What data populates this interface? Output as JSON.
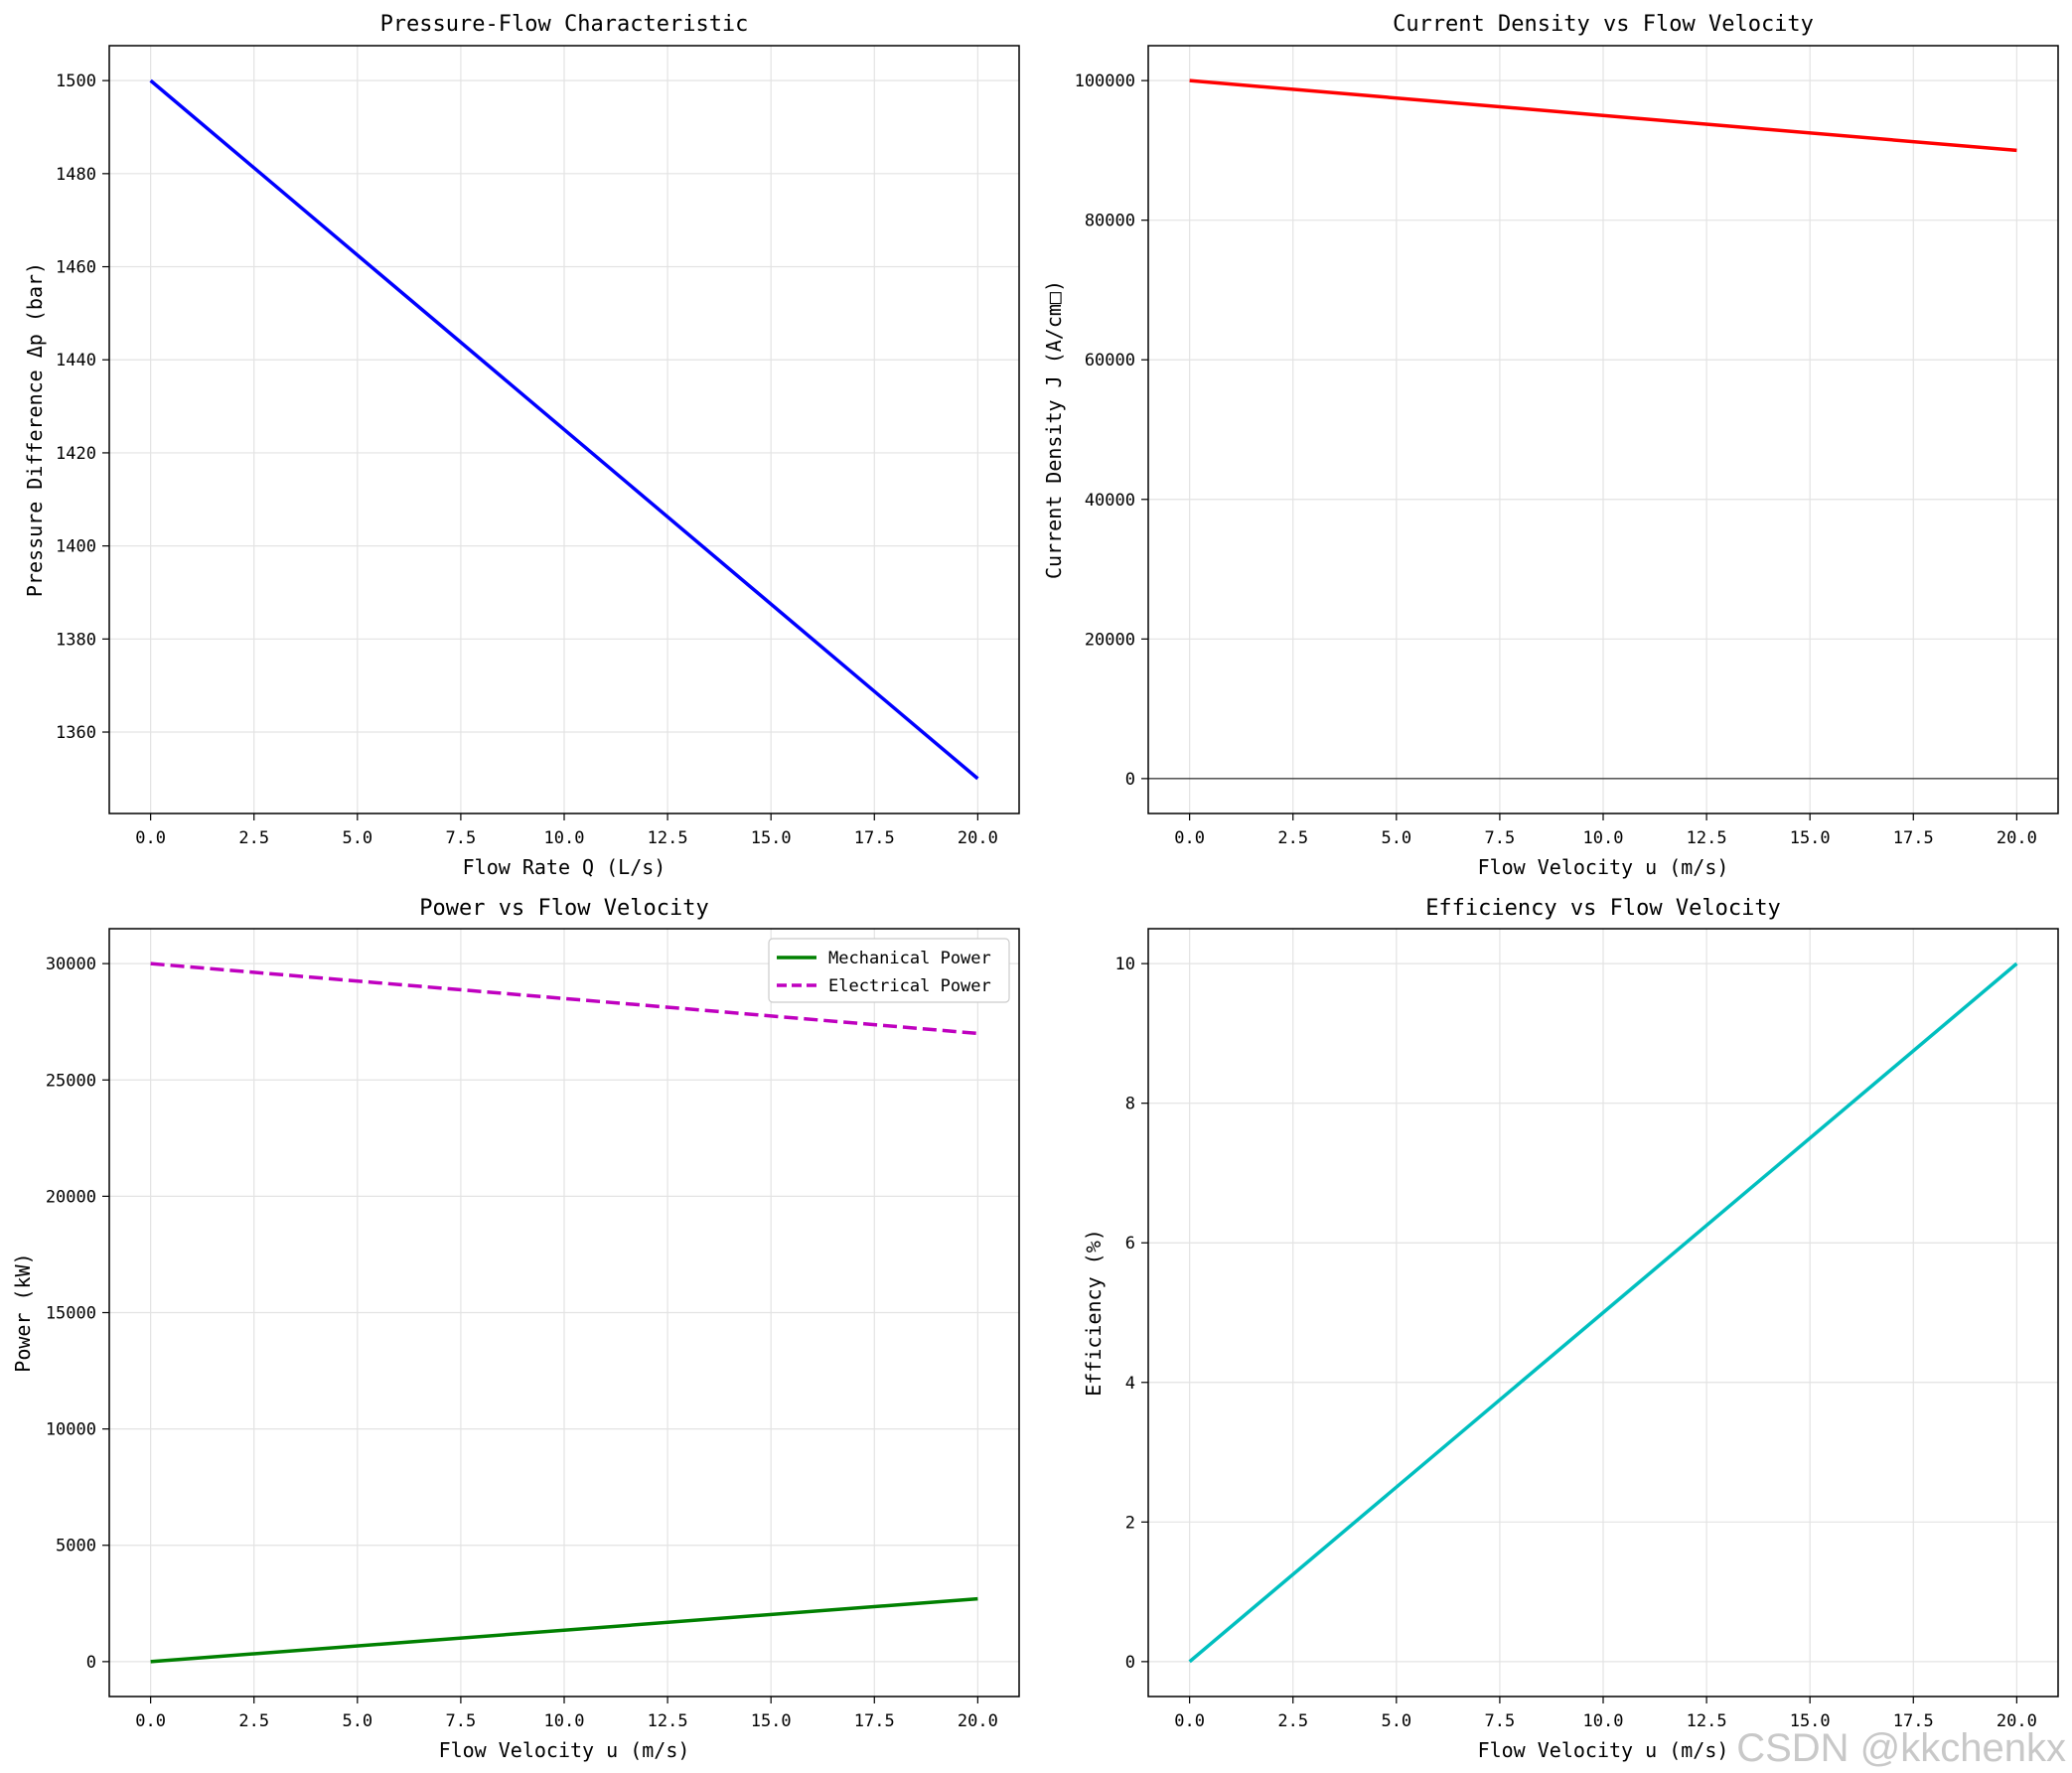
{
  "watermark": "CSDN @kkchenkx",
  "chart_data": [
    {
      "type": "line",
      "title": "Pressure-Flow Characteristic",
      "xlabel": "Flow Rate Q (L/s)",
      "ylabel": "Pressure Difference Δp (bar)",
      "xlim": [
        -1,
        21
      ],
      "ylim": [
        1342.5,
        1507.5
      ],
      "xticks": [
        0.0,
        2.5,
        5.0,
        7.5,
        10.0,
        12.5,
        15.0,
        17.5,
        20.0
      ],
      "yticks": [
        1360,
        1380,
        1400,
        1420,
        1440,
        1460,
        1480,
        1500
      ],
      "grid": true,
      "series": [
        {
          "name": "Δp",
          "color": "#0000ff",
          "dash": "solid",
          "x": [
            0,
            20
          ],
          "y": [
            1500,
            1350
          ]
        }
      ]
    },
    {
      "type": "line",
      "title": "Current Density vs Flow Velocity",
      "xlabel": "Flow Velocity u (m/s)",
      "ylabel": "Current Density J (A/cm□)",
      "xlim": [
        -1,
        21
      ],
      "ylim": [
        -5000,
        105000
      ],
      "xticks": [
        0.0,
        2.5,
        5.0,
        7.5,
        10.0,
        12.5,
        15.0,
        17.5,
        20.0
      ],
      "yticks": [
        0,
        20000,
        40000,
        60000,
        80000,
        100000
      ],
      "grid": true,
      "hline": 0,
      "series": [
        {
          "name": "J",
          "color": "#ff0000",
          "dash": "solid",
          "x": [
            0,
            20
          ],
          "y": [
            100000,
            90000
          ]
        }
      ]
    },
    {
      "type": "line",
      "title": "Power vs Flow Velocity",
      "xlabel": "Flow Velocity u (m/s)",
      "ylabel": "Power (kW)",
      "xlim": [
        -1,
        21
      ],
      "ylim": [
        -1500,
        31500
      ],
      "xticks": [
        0.0,
        2.5,
        5.0,
        7.5,
        10.0,
        12.5,
        15.0,
        17.5,
        20.0
      ],
      "yticks": [
        0,
        5000,
        10000,
        15000,
        20000,
        25000,
        30000
      ],
      "grid": true,
      "legend": "top-right",
      "series": [
        {
          "name": "Mechanical Power",
          "color": "#008000",
          "dash": "solid",
          "x": [
            0,
            20
          ],
          "y": [
            0,
            2700
          ]
        },
        {
          "name": "Electrical Power",
          "color": "#bf00bf",
          "dash": "dashed",
          "x": [
            0,
            20
          ],
          "y": [
            30000,
            27000
          ]
        }
      ]
    },
    {
      "type": "line",
      "title": "Efficiency vs Flow Velocity",
      "xlabel": "Flow Velocity u (m/s)",
      "ylabel": "Efficiency (%)",
      "xlim": [
        -1,
        21
      ],
      "ylim": [
        -0.5,
        10.5
      ],
      "xticks": [
        0.0,
        2.5,
        5.0,
        7.5,
        10.0,
        12.5,
        15.0,
        17.5,
        20.0
      ],
      "yticks": [
        0,
        2,
        4,
        6,
        8,
        10
      ],
      "grid": true,
      "series": [
        {
          "name": "Efficiency",
          "color": "#00bfbf",
          "dash": "solid",
          "x": [
            0,
            20
          ],
          "y": [
            0,
            10
          ]
        }
      ]
    }
  ]
}
